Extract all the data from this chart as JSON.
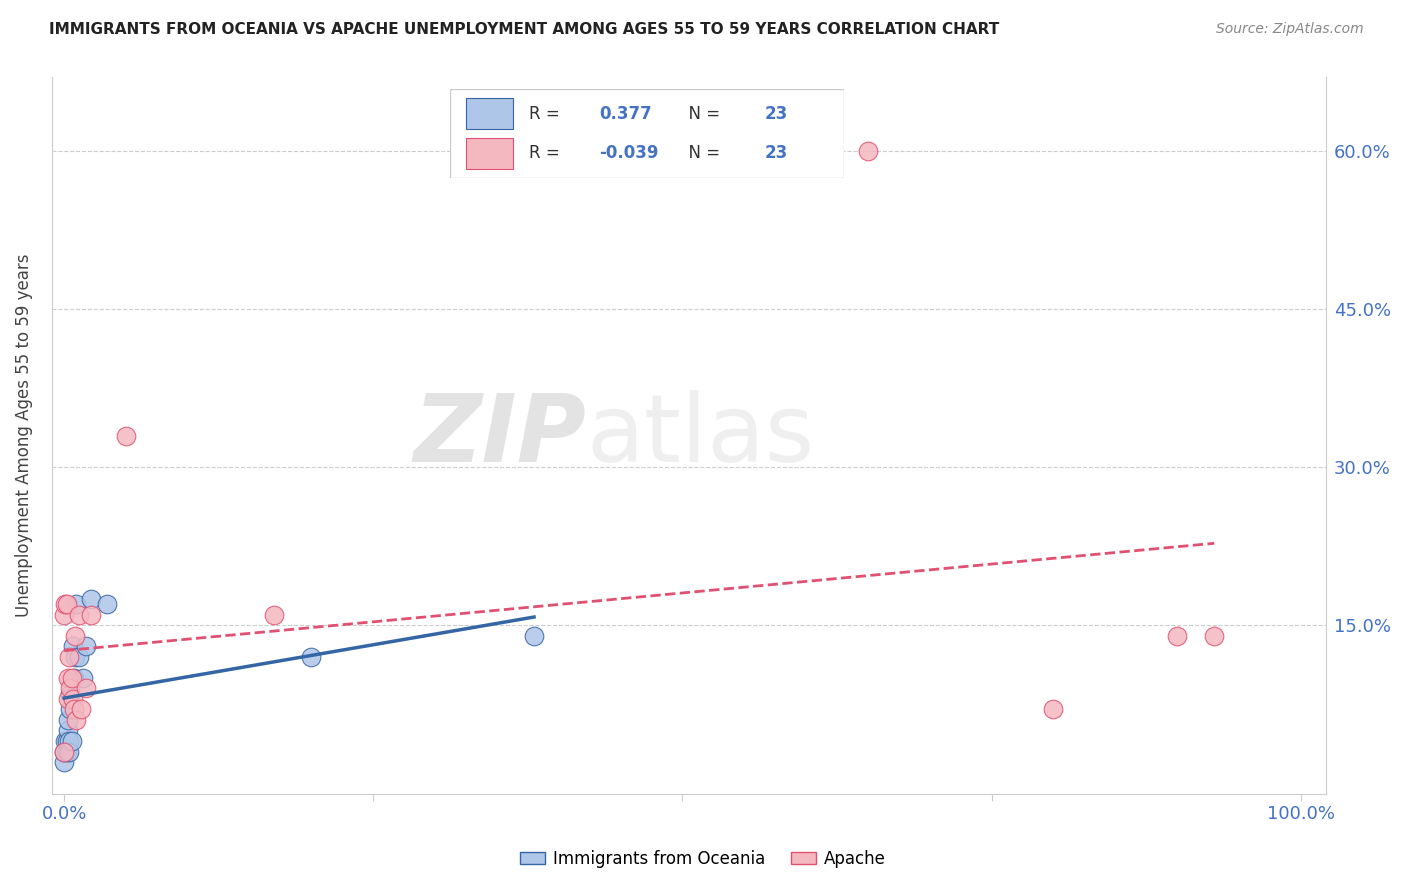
{
  "title": "IMMIGRANTS FROM OCEANIA VS APACHE UNEMPLOYMENT AMONG AGES 55 TO 59 YEARS CORRELATION CHART",
  "source": "Source: ZipAtlas.com",
  "tick_color": "#4472c4",
  "ylabel": "Unemployment Among Ages 55 to 59 years",
  "xlim": [
    -0.01,
    1.02
  ],
  "ylim": [
    -0.01,
    0.67
  ],
  "xticks": [
    0.0,
    0.25,
    0.5,
    0.75,
    1.0
  ],
  "xtick_labels": [
    "0.0%",
    "",
    "",
    "",
    "100.0%"
  ],
  "ytick_labels": [
    "15.0%",
    "30.0%",
    "45.0%",
    "60.0%"
  ],
  "yticks": [
    0.15,
    0.3,
    0.45,
    0.6
  ],
  "r_oceania": "0.377",
  "n_oceania": "23",
  "r_apache": "-0.039",
  "n_apache": "23",
  "color_oceania": "#aec6e8",
  "color_apache": "#f4b8c1",
  "line_color_oceania": "#3465a4",
  "line_color_apache": "#e05070",
  "watermark_zip": "ZIP",
  "watermark_atlas": "atlas",
  "legend_labels": [
    "Immigrants from Oceania",
    "Apache"
  ],
  "oceania_x": [
    0.0,
    0.0,
    0.001,
    0.002,
    0.002,
    0.003,
    0.003,
    0.004,
    0.004,
    0.005,
    0.005,
    0.006,
    0.007,
    0.008,
    0.009,
    0.01,
    0.012,
    0.015,
    0.018,
    0.022,
    0.035,
    0.2,
    0.38
  ],
  "oceania_y": [
    0.02,
    0.03,
    0.04,
    0.03,
    0.04,
    0.05,
    0.06,
    0.04,
    0.03,
    0.07,
    0.085,
    0.04,
    0.13,
    0.1,
    0.12,
    0.17,
    0.12,
    0.1,
    0.13,
    0.175,
    0.17,
    0.12,
    0.14
  ],
  "apache_x": [
    0.0,
    0.0,
    0.001,
    0.002,
    0.003,
    0.003,
    0.004,
    0.005,
    0.006,
    0.007,
    0.008,
    0.009,
    0.01,
    0.012,
    0.014,
    0.018,
    0.022,
    0.05,
    0.17,
    0.65,
    0.8,
    0.9,
    0.93
  ],
  "apache_y": [
    0.03,
    0.16,
    0.17,
    0.17,
    0.08,
    0.1,
    0.12,
    0.09,
    0.1,
    0.08,
    0.07,
    0.14,
    0.06,
    0.16,
    0.07,
    0.09,
    0.16,
    0.33,
    0.16,
    0.6,
    0.07,
    0.14,
    0.14
  ]
}
